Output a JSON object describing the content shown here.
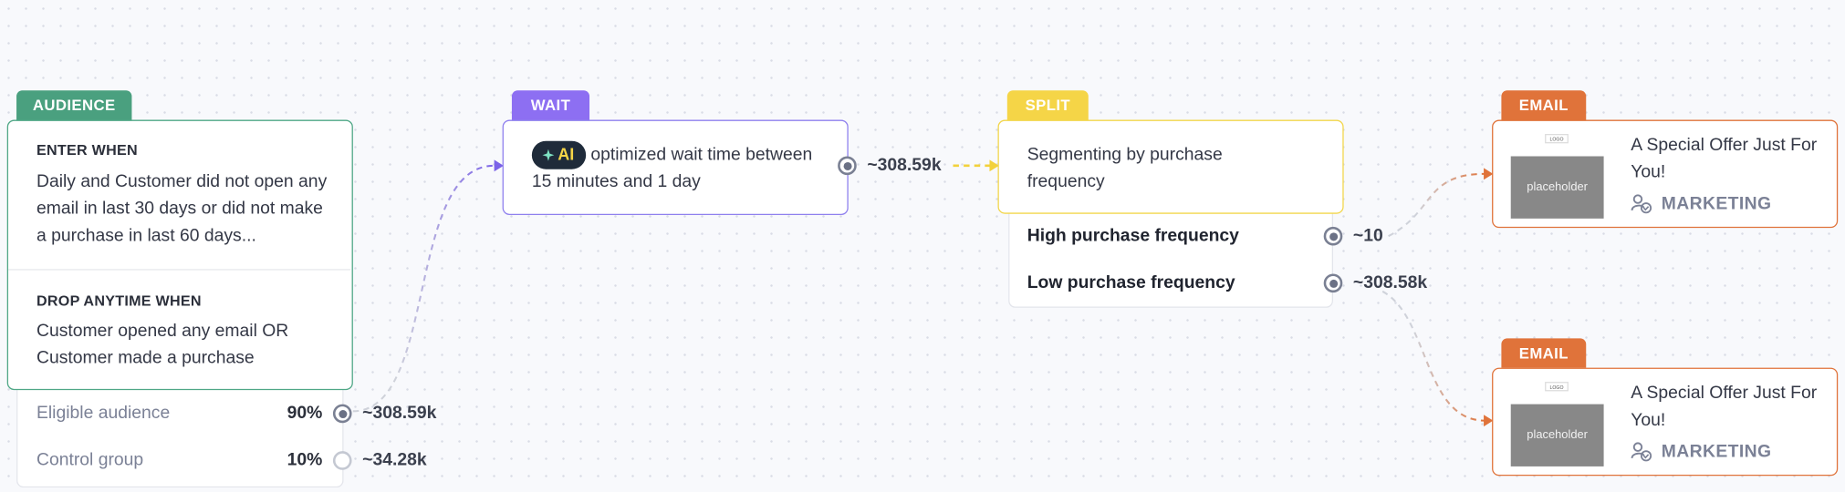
{
  "audience": {
    "tag": "AUDIENCE",
    "enter_title": "ENTER WHEN",
    "enter_text": "Daily and Customer did not open any email in last 30 days or did not make a purchase in last 60 days...",
    "drop_title": "DROP ANYTIME WHEN",
    "drop_text": "Customer opened any email OR Customer made a purchase",
    "groups": [
      {
        "name": "Eligible audience",
        "percent": "90%",
        "count": "~308.59k"
      },
      {
        "name": "Control group",
        "percent": "10%",
        "count": "~34.28k"
      }
    ]
  },
  "wait": {
    "tag": "WAIT",
    "badge": "AI",
    "text": "optimized wait time between 15 minutes and 1 day",
    "count": "~308.59k"
  },
  "split": {
    "tag": "SPLIT",
    "text": "Segmenting by purchase frequency",
    "branches": [
      {
        "name": "High purchase frequency",
        "count": "~10"
      },
      {
        "name": "Low purchase frequency",
        "count": "~308.58k"
      }
    ]
  },
  "emails": [
    {
      "tag": "EMAIL",
      "logo": "LOGO",
      "thumb": "placeholder",
      "title": "A Special Offer Just For You!",
      "category": "MARKETING"
    },
    {
      "tag": "EMAIL",
      "logo": "LOGO",
      "thumb": "placeholder",
      "title": "A Special Offer Just For You!",
      "category": "MARKETING"
    }
  ]
}
